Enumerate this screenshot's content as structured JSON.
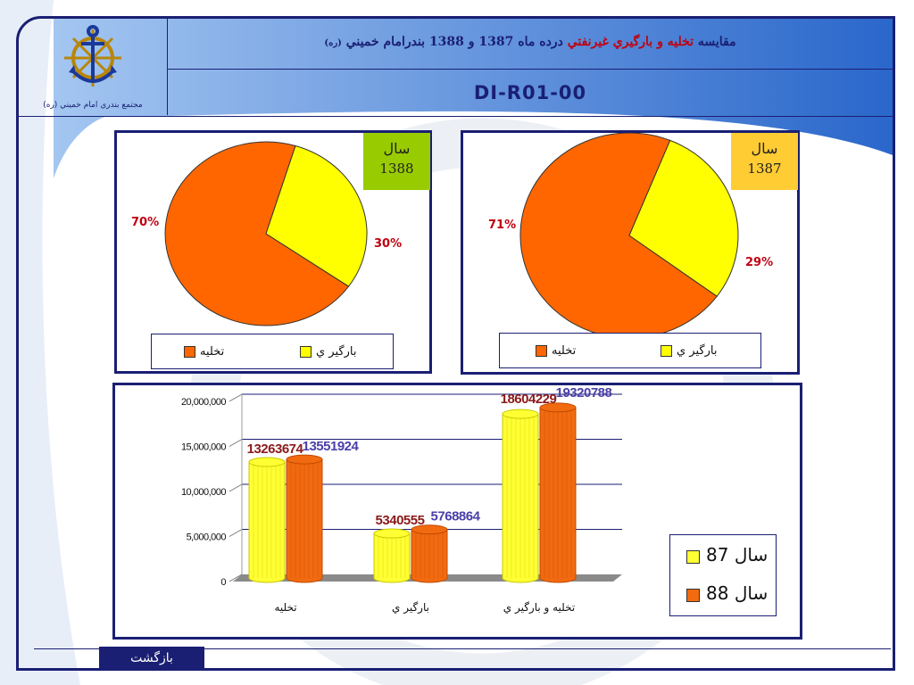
{
  "header": {
    "title_part1": "مقايسه",
    "title_part2": "تخليه و بارگيري غيرنفتي",
    "title_part3": "درده ماه 1387 و 1388 بندرامام خميني",
    "title_part4": "(ره)",
    "doc_code": "DI-R01-00",
    "logo_caption": "مجتمع بندري امام خميني (ره)"
  },
  "colors": {
    "frame": "#1a1f73",
    "unload": "#ff6600",
    "load": "#ffff00",
    "series87": "#ffff33",
    "series88": "#f26a10",
    "label87": "#8b1a1a",
    "label88": "#4b3fa8",
    "year1388_bg": "#99cc00",
    "year1387_bg": "#ffcc33"
  },
  "pie_1388": {
    "year_label": "سال",
    "year": "1388",
    "unload_pct": "70%",
    "load_pct": "30%",
    "legend_unload": "تخليه",
    "legend_load": "بارگير ي"
  },
  "pie_1387": {
    "year_label": "سال",
    "year": "1387",
    "unload_pct": "71%",
    "load_pct": "29%",
    "legend_unload": "تخليه",
    "legend_load": "بارگير ي"
  },
  "bar_legend": {
    "s87": "87 سال",
    "s88": "88 سال"
  },
  "footer": {
    "back_label": "بازگشت"
  },
  "chart_data": [
    {
      "type": "pie",
      "year_tag": "1388",
      "categories": [
        "تخليه",
        "بارگير ي"
      ],
      "values": [
        70,
        30
      ],
      "labels": [
        "70%",
        "30%"
      ]
    },
    {
      "type": "pie",
      "year_tag": "1387",
      "categories": [
        "تخليه",
        "بارگير ي"
      ],
      "values": [
        71,
        29
      ],
      "labels": [
        "71%",
        "29%"
      ]
    },
    {
      "type": "bar",
      "categories": [
        "تخليه",
        "بارگير ي",
        "تخليه و بارگير ي"
      ],
      "series": [
        {
          "name": "87 سال",
          "values": [
            13263674,
            5340555,
            18604229
          ],
          "labels": [
            "13263674",
            "5340555",
            "18604229"
          ]
        },
        {
          "name": "88 سال",
          "values": [
            13551924,
            5768864,
            19320788
          ],
          "labels": [
            "13551924",
            "5768864",
            "19320788"
          ]
        }
      ],
      "ylim": [
        0,
        20000000
      ],
      "yticks": [
        0,
        5000000,
        10000000,
        15000000,
        20000000
      ],
      "ytick_labels": [
        "0",
        "5,000,000",
        "10,000,000",
        "15,000,000",
        "20,000,000"
      ],
      "grid": true,
      "legend_position": "right"
    }
  ]
}
